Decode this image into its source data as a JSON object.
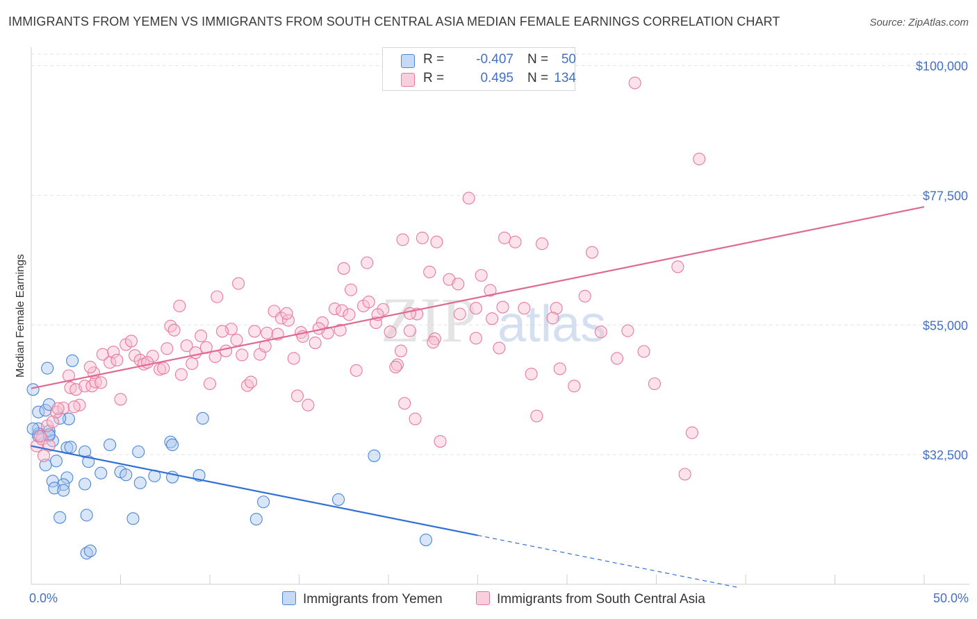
{
  "title": "IMMIGRANTS FROM YEMEN VS IMMIGRANTS FROM SOUTH CENTRAL ASIA MEDIAN FEMALE EARNINGS CORRELATION CHART",
  "source": "Source: ZipAtlas.com",
  "watermark": {
    "zip": "ZIP",
    "atlas": "atlas"
  },
  "legend": {
    "r_label": "R =",
    "n_label": "N =",
    "rows": [
      {
        "r": "-0.407",
        "n": "50",
        "color": "#4a86d8"
      },
      {
        "r": "0.495",
        "n": "134",
        "color": "#e8799e"
      }
    ]
  },
  "bottom_legend": [
    "Immigrants from Yemen",
    "Immigrants from South Central Asia"
  ],
  "chart_data": {
    "type": "scatter",
    "title": "IMMIGRANTS FROM YEMEN VS IMMIGRANTS FROM SOUTH CENTRAL ASIA MEDIAN FEMALE EARNINGS CORRELATION CHART",
    "xlabel": "",
    "ylabel": "Median Female Earnings",
    "xlim": [
      0,
      50
    ],
    "ylim": [
      10000,
      102000
    ],
    "x_tick_labels": [
      "0.0%",
      "50.0%"
    ],
    "y_ticks": [
      32500,
      55000,
      77500,
      100000
    ],
    "y_tick_labels": [
      "$32,500",
      "$55,000",
      "$77,500",
      "$100,000"
    ],
    "grid": true,
    "series": [
      {
        "name": "Immigrants from Yemen",
        "color": "#4a86d8",
        "trend": {
          "x0": 0,
          "y0": 34000,
          "x1": 25,
          "y1": 18500,
          "dash_to_x": 39.5,
          "dash_to_y": 9500
        },
        "points": [
          [
            0.1,
            43.8
          ],
          [
            0.9,
            47.5
          ],
          [
            2.3,
            48.8
          ],
          [
            0.4,
            39.9
          ],
          [
            0.8,
            40.2
          ],
          [
            1.0,
            41.2
          ],
          [
            2.1,
            38.7
          ],
          [
            1.6,
            38.8
          ],
          [
            0.4,
            37.0
          ],
          [
            1.0,
            36.6
          ],
          [
            0.4,
            36.1
          ],
          [
            1.0,
            35.8
          ],
          [
            1.2,
            34.9
          ],
          [
            2.0,
            33.7
          ],
          [
            2.2,
            33.8
          ],
          [
            3.0,
            33.0
          ],
          [
            3.2,
            31.3
          ],
          [
            1.4,
            31.4
          ],
          [
            0.8,
            30.7
          ],
          [
            4.4,
            34.2
          ],
          [
            6.0,
            33.0
          ],
          [
            7.8,
            34.7
          ],
          [
            7.9,
            34.2
          ],
          [
            9.6,
            38.8
          ],
          [
            1.2,
            27.9
          ],
          [
            2.0,
            28.5
          ],
          [
            1.8,
            27.3
          ],
          [
            3.0,
            27.4
          ],
          [
            3.9,
            29.3
          ],
          [
            5.0,
            29.5
          ],
          [
            5.3,
            29.0
          ],
          [
            6.1,
            27.6
          ],
          [
            6.9,
            28.8
          ],
          [
            7.9,
            28.6
          ],
          [
            9.4,
            28.9
          ],
          [
            1.3,
            26.7
          ],
          [
            1.8,
            26.3
          ],
          [
            1.6,
            21.6
          ],
          [
            3.1,
            22.0
          ],
          [
            5.7,
            21.4
          ],
          [
            12.6,
            21.3
          ],
          [
            13.0,
            24.3
          ],
          [
            17.2,
            24.7
          ],
          [
            19.2,
            32.3
          ],
          [
            22.1,
            17.7
          ],
          [
            3.1,
            15.4
          ],
          [
            3.3,
            15.8
          ],
          [
            0.4,
            35.7
          ],
          [
            1.0,
            36.0
          ],
          [
            0.1,
            37.0
          ]
        ]
      },
      {
        "name": "Immigrants from South Central Asia",
        "color": "#e8799e",
        "trend": {
          "x0": 0,
          "y0": 44000,
          "x1": 50,
          "y1": 75500
        },
        "points": [
          [
            0.3,
            34.0
          ],
          [
            0.6,
            35.2
          ],
          [
            0.9,
            37.5
          ],
          [
            1.2,
            38.2
          ],
          [
            1.4,
            39.9
          ],
          [
            1.8,
            40.6
          ],
          [
            2.2,
            44.1
          ],
          [
            2.5,
            43.8
          ],
          [
            2.7,
            41.1
          ],
          [
            2.4,
            40.8
          ],
          [
            3.0,
            44.4
          ],
          [
            3.4,
            44.4
          ],
          [
            3.6,
            45.1
          ],
          [
            3.9,
            45.0
          ],
          [
            3.5,
            46.7
          ],
          [
            4.0,
            49.9
          ],
          [
            4.4,
            48.5
          ],
          [
            4.6,
            50.3
          ],
          [
            4.8,
            48.9
          ],
          [
            5.0,
            42.1
          ],
          [
            5.3,
            51.6
          ],
          [
            5.6,
            52.2
          ],
          [
            5.8,
            49.7
          ],
          [
            6.1,
            48.9
          ],
          [
            6.3,
            48.2
          ],
          [
            6.8,
            49.6
          ],
          [
            7.2,
            47.3
          ],
          [
            7.4,
            47.5
          ],
          [
            7.6,
            50.9
          ],
          [
            7.8,
            54.8
          ],
          [
            8.0,
            54.1
          ],
          [
            8.4,
            46.4
          ],
          [
            8.7,
            51.4
          ],
          [
            9.0,
            48.3
          ],
          [
            9.5,
            53.1
          ],
          [
            9.8,
            51.1
          ],
          [
            10.0,
            44.8
          ],
          [
            10.3,
            49.5
          ],
          [
            10.9,
            50.5
          ],
          [
            11.2,
            54.3
          ],
          [
            11.5,
            52.4
          ],
          [
            11.8,
            49.8
          ],
          [
            12.1,
            44.5
          ],
          [
            12.5,
            53.9
          ],
          [
            12.8,
            49.9
          ],
          [
            13.2,
            53.6
          ],
          [
            13.6,
            57.4
          ],
          [
            14.0,
            56.2
          ],
          [
            14.4,
            55.8
          ],
          [
            14.7,
            49.2
          ],
          [
            15.1,
            53.7
          ],
          [
            15.5,
            41.1
          ],
          [
            15.9,
            51.9
          ],
          [
            16.3,
            55.4
          ],
          [
            16.6,
            53.6
          ],
          [
            17.0,
            57.8
          ],
          [
            17.4,
            57.5
          ],
          [
            17.5,
            64.8
          ],
          [
            17.9,
            61.1
          ],
          [
            18.2,
            47.1
          ],
          [
            18.6,
            58.3
          ],
          [
            18.9,
            59.0
          ],
          [
            19.3,
            55.4
          ],
          [
            19.7,
            57.7
          ],
          [
            20.1,
            53.8
          ],
          [
            20.5,
            48.1
          ],
          [
            20.7,
            50.5
          ],
          [
            20.9,
            41.4
          ],
          [
            21.2,
            54.0
          ],
          [
            21.5,
            38.7
          ],
          [
            21.6,
            56.9
          ],
          [
            22.3,
            64.2
          ],
          [
            22.6,
            52.6
          ],
          [
            22.9,
            34.8
          ],
          [
            23.4,
            62.9
          ],
          [
            23.9,
            62.1
          ],
          [
            24.5,
            77.0
          ],
          [
            24.9,
            52.7
          ],
          [
            25.2,
            63.6
          ],
          [
            25.7,
            61.0
          ],
          [
            26.2,
            51.0
          ],
          [
            26.5,
            70.1
          ],
          [
            27.1,
            69.4
          ],
          [
            28.0,
            46.5
          ],
          [
            28.3,
            39.2
          ],
          [
            28.6,
            69.1
          ],
          [
            29.6,
            47.4
          ],
          [
            30.4,
            44.4
          ],
          [
            31.0,
            60.0
          ],
          [
            31.4,
            67.6
          ],
          [
            32.8,
            49.2
          ],
          [
            33.4,
            54.0
          ],
          [
            33.8,
            97.0
          ],
          [
            34.3,
            50.4
          ],
          [
            34.9,
            44.8
          ],
          [
            36.2,
            65.1
          ],
          [
            37.4,
            83.8
          ],
          [
            37.0,
            36.3
          ],
          [
            36.6,
            29.1
          ],
          [
            31.9,
            53.8
          ],
          [
            29.4,
            57.9
          ],
          [
            29.2,
            56.2
          ],
          [
            27.6,
            57.9
          ],
          [
            26.4,
            58.1
          ],
          [
            25.8,
            56.1
          ],
          [
            24.9,
            57.9
          ],
          [
            24.0,
            56.9
          ],
          [
            22.7,
            69.4
          ],
          [
            22.5,
            52.0
          ],
          [
            21.9,
            70.1
          ],
          [
            21.2,
            57.0
          ],
          [
            20.8,
            69.8
          ],
          [
            20.4,
            47.7
          ],
          [
            19.4,
            56.8
          ],
          [
            18.8,
            65.8
          ],
          [
            17.8,
            56.8
          ],
          [
            17.3,
            54.1
          ],
          [
            16.1,
            54.4
          ],
          [
            15.2,
            53.0
          ],
          [
            14.9,
            42.7
          ],
          [
            14.3,
            57.0
          ],
          [
            13.8,
            53.4
          ],
          [
            13.1,
            51.3
          ],
          [
            12.3,
            45.1
          ],
          [
            11.6,
            62.2
          ],
          [
            10.7,
            53.9
          ],
          [
            10.4,
            59.9
          ],
          [
            9.2,
            50.2
          ],
          [
            8.3,
            58.3
          ],
          [
            6.5,
            48.5
          ],
          [
            3.3,
            47.7
          ],
          [
            2.1,
            46.2
          ],
          [
            1.5,
            40.5
          ],
          [
            0.7,
            32.3
          ],
          [
            1.0,
            34.1
          ],
          [
            0.5,
            35.7
          ]
        ]
      }
    ]
  }
}
